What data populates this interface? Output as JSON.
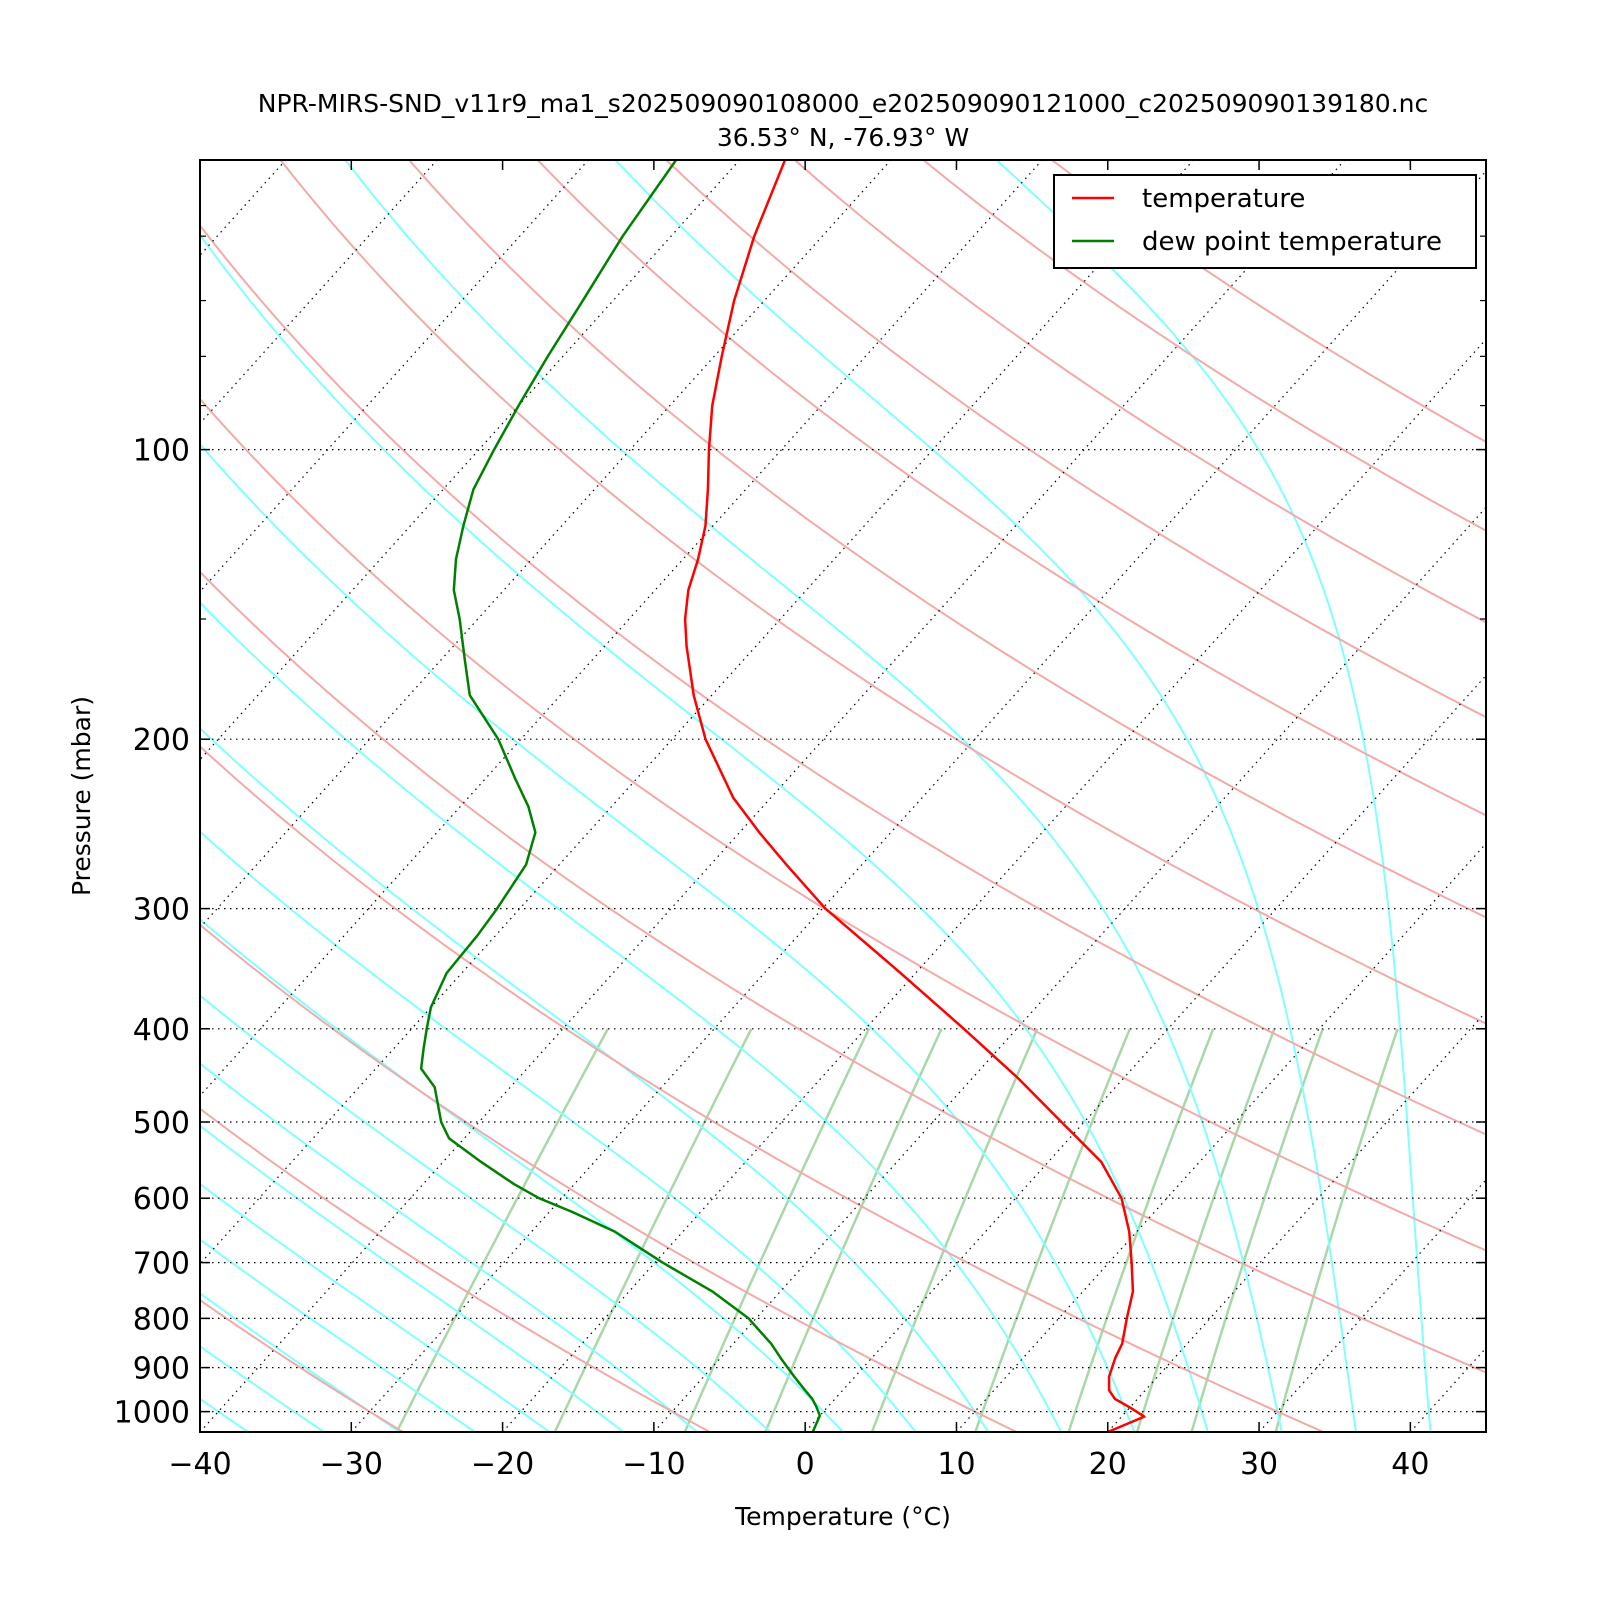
{
  "chart_data": {
    "type": "line",
    "subtype": "skew-T log-p diagram",
    "title": "NPR-MIRS-SND_v11r9_ma1_s202509090108000_e202509090121000_c202509090139180.nc",
    "subtitle": "36.53° N, -76.93° W",
    "xlabel": "Temperature (°C)",
    "ylabel": "Pressure (mbar)",
    "xlim": [
      -40,
      45
    ],
    "ylim": [
      1050,
      50
    ],
    "y_scale": "log",
    "x_ticks": [
      -40,
      -30,
      -20,
      -10,
      0,
      10,
      20,
      30,
      40
    ],
    "x_tick_labels": [
      "−40",
      "−30",
      "−20",
      "−10",
      "0",
      "10",
      "20",
      "30",
      "40"
    ],
    "y_ticks": [
      100,
      200,
      300,
      400,
      500,
      600,
      700,
      800,
      900,
      1000
    ],
    "y_tick_labels": [
      "100",
      "200",
      "300",
      "400",
      "500",
      "600",
      "700",
      "800",
      "900",
      "1000"
    ],
    "legend_position": "top-right",
    "grid": "dotted isobars and skewed isotherms; dry adiabats, moist adiabats and mixing-ratio lines",
    "series": [
      {
        "name": "temperature",
        "color": "#ff0000",
        "pressure": [
          1050,
          1012,
          990,
          970,
          950,
          920,
          880,
          850,
          800,
          750,
          700,
          650,
          600,
          550,
          500,
          450,
          400,
          350,
          300,
          270,
          250,
          230,
          200,
          180,
          160,
          150,
          140,
          130,
          120,
          110,
          100,
          90,
          80,
          70,
          60,
          50
        ],
        "values": [
          20.0,
          21.5,
          20.0,
          18.5,
          17.6,
          16.8,
          16.1,
          15.7,
          14.5,
          13.3,
          11.5,
          9.5,
          7.0,
          3.5,
          -1.5,
          -7.0,
          -13.5,
          -21.0,
          -29.8,
          -35.0,
          -38.7,
          -42.5,
          -47.8,
          -51.2,
          -54.6,
          -56.3,
          -57.8,
          -59.0,
          -60.5,
          -62.5,
          -64.8,
          -67.2,
          -69.5,
          -72.0,
          -74.5,
          -77.0
        ]
      },
      {
        "name": "dew point temperature",
        "color": "#008000",
        "pressure": [
          1050,
          1010,
          990,
          970,
          950,
          920,
          880,
          850,
          800,
          750,
          700,
          650,
          620,
          600,
          580,
          550,
          520,
          500,
          460,
          440,
          420,
          400,
          380,
          350,
          320,
          300,
          270,
          250,
          235,
          220,
          200,
          180,
          165,
          150,
          140,
          130,
          120,
          110,
          100,
          90,
          80,
          70,
          60,
          50
        ],
        "values": [
          0.5,
          0.0,
          -0.7,
          -1.5,
          -2.5,
          -4.0,
          -6.0,
          -7.5,
          -10.5,
          -14.5,
          -19.5,
          -24.5,
          -28.5,
          -31.5,
          -34.0,
          -37.5,
          -41.0,
          -42.5,
          -45.0,
          -47.0,
          -48.0,
          -49.0,
          -50.0,
          -51.0,
          -51.2,
          -51.5,
          -52.2,
          -53.5,
          -55.5,
          -58.0,
          -61.5,
          -66.0,
          -68.5,
          -71.2,
          -73.3,
          -75.0,
          -76.5,
          -78.0,
          -79.0,
          -80.0,
          -81.0,
          -82.0,
          -83.2,
          -84.2
        ]
      }
    ]
  }
}
